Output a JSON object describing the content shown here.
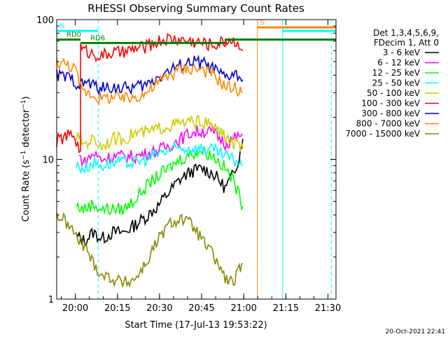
{
  "chart_data": {
    "type": "line",
    "title": "RHESSI Observing Summary Count Rates",
    "xlabel": "Start Time (17-Jul-13 19:53:22)",
    "ylabel": "Count Rate (s⁻¹ detector⁻¹)",
    "ylabel_text": "Count Rate (s",
    "ylabel_sup1": "−1",
    "ylabel_mid": " detector",
    "ylabel_sup2": "−1",
    "ylabel_close": ")",
    "x_unit": "minutes since 19:53:22",
    "xlim": [
      0,
      99.5
    ],
    "ylim": [
      1,
      100
    ],
    "yscale": "log",
    "x_ticks": [
      {
        "value": 6.63,
        "label": "20:00"
      },
      {
        "value": 21.63,
        "label": "20:15"
      },
      {
        "value": 36.63,
        "label": "20:30"
      },
      {
        "value": 51.63,
        "label": "20:45"
      },
      {
        "value": 66.63,
        "label": "21:00"
      },
      {
        "value": 81.63,
        "label": "21:15"
      },
      {
        "value": 96.63,
        "label": "21:30"
      }
    ],
    "y_ticks": [
      {
        "value": 1,
        "label": "1"
      },
      {
        "value": 10,
        "label": "10"
      },
      {
        "value": 100,
        "label": "100"
      }
    ],
    "legend_header": [
      "Det 1,3,4,5,6,9,",
      "FDecim 1, Att 0"
    ],
    "legend_position": "right",
    "series": [
      {
        "name": "3 - 6 keV",
        "color": "#000000",
        "x": [
          7,
          10,
          13,
          16,
          20,
          24,
          28,
          32,
          36,
          40,
          44,
          48,
          52,
          56,
          60,
          63,
          65,
          66.3
        ],
        "y": [
          2.8,
          2.6,
          3.0,
          2.7,
          3.0,
          3.0,
          3.4,
          3.9,
          4.6,
          5.8,
          7.2,
          8.2,
          8.6,
          7.8,
          6.2,
          7.8,
          10.5,
          14.0
        ]
      },
      {
        "name": "6 - 12 keV",
        "color": "#ff00ff",
        "x": [
          8,
          10,
          13,
          16,
          20,
          24,
          28,
          32,
          36,
          40,
          44,
          48,
          52,
          56,
          60,
          63,
          65,
          66.3
        ],
        "y": [
          10.5,
          9.5,
          11.0,
          10.0,
          10.5,
          10.5,
          10.5,
          11.0,
          11.5,
          12.5,
          14.0,
          15.5,
          16.0,
          15.5,
          13.0,
          14.0,
          14.5,
          15.0
        ]
      },
      {
        "name": "12 - 25 keV",
        "color": "#00ff00",
        "x": [
          7,
          10,
          13,
          16,
          20,
          24,
          28,
          32,
          36,
          40,
          44,
          48,
          52,
          56,
          60,
          63,
          65,
          66.3
        ],
        "y": [
          4.6,
          4.4,
          4.8,
          4.4,
          4.4,
          4.4,
          5.2,
          6.4,
          7.6,
          8.6,
          10.0,
          11.0,
          11.5,
          10.5,
          8.6,
          7.0,
          5.5,
          4.6
        ]
      },
      {
        "name": "25 - 50 keV",
        "color": "#00ffff",
        "x": [
          7,
          10,
          13,
          16,
          20,
          24,
          28,
          32,
          36,
          40,
          44,
          48,
          52,
          56,
          60,
          63,
          65,
          66.3
        ],
        "y": [
          9.0,
          8.6,
          9.5,
          9.0,
          9.5,
          9.5,
          9.5,
          10.0,
          11.0,
          11.5,
          12.0,
          12.0,
          12.0,
          11.5,
          10.5,
          10.0,
          9.5,
          9.0
        ]
      },
      {
        "name": "50 - 100 keV",
        "color": "#cccc00",
        "x": [
          7,
          10,
          13,
          16,
          20,
          24,
          28,
          32,
          36,
          40,
          44,
          48,
          52,
          56,
          60,
          63,
          65,
          66.3
        ],
        "y": [
          14.5,
          13.0,
          14.0,
          12.5,
          14.0,
          14.0,
          15.5,
          15.5,
          16.5,
          17.5,
          18.0,
          18.5,
          18.5,
          17.0,
          14.5,
          13.0,
          12.5,
          12.0
        ]
      },
      {
        "name": "100 - 300 keV",
        "color": "#ff0000",
        "x": [
          0,
          3,
          6,
          8.5,
          8.51,
          10,
          13,
          16,
          20,
          24,
          28,
          32,
          36,
          40,
          44,
          48,
          52,
          56,
          60,
          60.1,
          63,
          65,
          66.3
        ],
        "y": [
          13.5,
          14.5,
          15.0,
          11.0,
          62.0,
          60.0,
          57.0,
          55.0,
          58.0,
          58.0,
          62.0,
          64.0,
          70.0,
          73.0,
          72.0,
          70.0,
          68.0,
          66.0,
          70.0,
          73.0,
          70.0,
          68.0,
          60.0
        ]
      },
      {
        "name": "300 - 800 keV",
        "color": "#0000cc",
        "x": [
          0,
          3,
          6,
          8,
          9,
          10,
          13,
          16,
          20,
          24,
          28,
          32,
          36,
          40,
          44,
          48,
          52,
          56,
          60,
          63,
          65,
          66.3
        ],
        "y": [
          40.0,
          39.0,
          37.0,
          34.0,
          34.0,
          36.0,
          34.0,
          32.0,
          33.0,
          32.0,
          33.0,
          34.0,
          39.0,
          43.0,
          47.0,
          50.0,
          49.0,
          44.0,
          38.0,
          41.0,
          39.0,
          37.0
        ]
      },
      {
        "name": "800 - 7000 keV",
        "color": "#ff8800",
        "x": [
          0,
          3,
          6,
          8,
          9,
          10,
          13,
          16,
          20,
          24,
          28,
          32,
          36,
          40,
          44,
          48,
          52,
          56,
          60,
          63,
          65,
          66.3
        ],
        "y": [
          50.0,
          48.0,
          46.0,
          36.0,
          30.0,
          31.0,
          29.0,
          27.0,
          28.0,
          27.0,
          28.0,
          30.0,
          35.0,
          40.0,
          44.0,
          45.0,
          44.0,
          40.0,
          33.0,
          33.0,
          31.0,
          30.0
        ]
      },
      {
        "name": "7000 - 15000 keV",
        "color": "#888800",
        "x": [
          0,
          3,
          6,
          8,
          10,
          13,
          16,
          20,
          24,
          28,
          32,
          36,
          40,
          44,
          48,
          52,
          56,
          60,
          63,
          65,
          66.3
        ],
        "y": [
          4.0,
          3.6,
          3.0,
          2.6,
          2.4,
          1.8,
          1.5,
          1.4,
          1.3,
          1.4,
          1.8,
          2.6,
          3.4,
          3.8,
          3.4,
          2.6,
          2.0,
          1.4,
          1.3,
          1.6,
          1.8
        ]
      }
    ],
    "mode_bars": [
      {
        "name": "RD0",
        "color": "#008000",
        "x": [
          0,
          8.5
        ],
        "y": 72
      },
      {
        "name": "RD6",
        "color": "#008000",
        "x": [
          8.5,
          36.5
        ],
        "y": 68
      },
      {
        "name": "",
        "color": "#008000",
        "x": [
          36.5,
          60
        ],
        "y": 68
      },
      {
        "name": "",
        "color": "#008000",
        "x": [
          60,
          99.5
        ],
        "y": 72
      },
      {
        "name": "N",
        "color": "#00ffff",
        "x": [
          0,
          14.8
        ],
        "y": 83
      },
      {
        "name": "",
        "color": "#00ffff",
        "x": [
          80.5,
          99.5
        ],
        "y": 83
      },
      {
        "name": "S",
        "color": "#ff8800",
        "x": [
          71.5,
          99.5
        ],
        "y": 88
      }
    ],
    "markers": [
      {
        "color": "#00ffff",
        "style": "dashed",
        "x": 14.8
      },
      {
        "color": "#00ffff",
        "style": "dashed",
        "x": 97.8
      },
      {
        "color": "#00ffff",
        "style": "solid",
        "x": 80.5
      },
      {
        "color": "#ff8800",
        "style": "solid",
        "x": 71.5
      }
    ],
    "grid": false
  },
  "timestamp": "20-Oct-2021 22:41"
}
